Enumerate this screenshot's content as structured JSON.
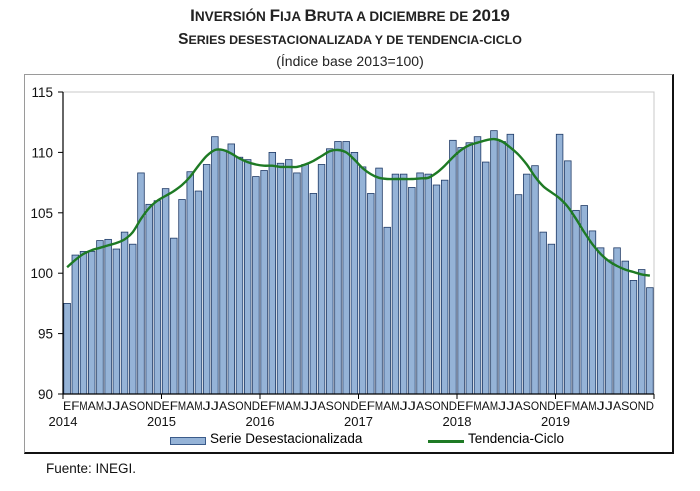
{
  "header": {
    "title_caps": [
      "I",
      "NVERSIÓN ",
      "F",
      "IJA ",
      "B",
      "RUTA A DICIEMBRE DE ",
      "2019"
    ],
    "title": "Inversión Fija Bruta a diciembre de 2019",
    "subtitle": "Series desestacionalizada y de tendencia-ciclo",
    "subtitle_caps": [
      "S",
      "ERIES DESESTACIONALIZADA Y DE TENDENCIA-CICLO"
    ],
    "note": "(Índice base 2013=100)"
  },
  "footer": {
    "source": "Fuente: INEGI."
  },
  "colors": {
    "bar_fill": "#95b3d7",
    "bar_edge": "#1f3a66",
    "trend": "#1e7a24",
    "axis": "#000000"
  },
  "chart_data": {
    "type": "bar",
    "title": "Inversión Fija Bruta a diciembre de 2019",
    "subtitle": "Series desestacionalizada y de tendencia-ciclo",
    "note": "(Índice base 2013=100)",
    "xlabel": "",
    "ylabel": "",
    "ylim": [
      90,
      115
    ],
    "yticks": [
      90,
      95,
      100,
      105,
      110,
      115
    ],
    "grid": false,
    "legend_position": "bottom",
    "month_labels": [
      "E",
      "F",
      "M",
      "A",
      "M",
      "J",
      "J",
      "A",
      "S",
      "O",
      "N",
      "D"
    ],
    "years": [
      "2014",
      "2015",
      "2016",
      "2017",
      "2018",
      "2019"
    ],
    "series": [
      {
        "name": "Serie Desestacionalizada",
        "type": "bar",
        "values": [
          97.5,
          101.5,
          101.8,
          101.8,
          102.7,
          102.8,
          102.0,
          103.4,
          102.4,
          108.3,
          105.7,
          106.0,
          107.0,
          102.9,
          106.1,
          108.4,
          106.8,
          109.0,
          111.3,
          110.2,
          110.7,
          109.6,
          109.4,
          108.0,
          108.5,
          110.0,
          109.1,
          109.4,
          108.3,
          109.0,
          106.6,
          109.0,
          110.3,
          110.9,
          110.9,
          110.0,
          108.8,
          106.6,
          108.7,
          103.8,
          108.2,
          108.2,
          107.1,
          108.3,
          108.2,
          107.3,
          107.7,
          111.0,
          110.4,
          110.8,
          111.3,
          109.2,
          111.8,
          110.9,
          111.5,
          106.5,
          108.2,
          108.9,
          103.4,
          102.4,
          111.5,
          109.3,
          105.2,
          105.6,
          103.5,
          102.1,
          101.1,
          102.1,
          101.0,
          99.4,
          100.3,
          98.8
        ]
      },
      {
        "name": "Tendencia-Ciclo",
        "type": "line",
        "values": [
          100.5,
          101.1,
          101.6,
          101.9,
          102.1,
          102.3,
          102.5,
          102.8,
          103.4,
          104.5,
          105.4,
          106.0,
          106.4,
          106.8,
          107.3,
          108.0,
          108.9,
          109.7,
          110.2,
          110.2,
          109.9,
          109.5,
          109.2,
          109.0,
          108.9,
          108.9,
          108.8,
          108.8,
          108.8,
          109.0,
          109.3,
          109.7,
          110.1,
          110.2,
          110.0,
          109.4,
          108.7,
          108.2,
          107.9,
          107.8,
          107.8,
          107.8,
          107.8,
          107.85,
          107.9,
          108.3,
          108.9,
          109.6,
          110.2,
          110.6,
          110.8,
          111.0,
          111.1,
          110.9,
          110.4,
          109.8,
          109.0,
          108.0,
          107.2,
          106.7,
          106.2,
          105.5,
          104.5,
          103.4,
          102.4,
          101.6,
          101.0,
          100.6,
          100.3,
          100.1,
          99.9,
          99.8
        ]
      }
    ]
  }
}
